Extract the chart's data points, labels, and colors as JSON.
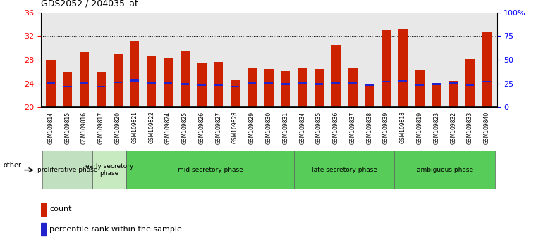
{
  "title": "GDS2052 / 204035_at",
  "samples": [
    "GSM109814",
    "GSM109815",
    "GSM109816",
    "GSM109817",
    "GSM109820",
    "GSM109821",
    "GSM109822",
    "GSM109824",
    "GSM109825",
    "GSM109826",
    "GSM109827",
    "GSM109828",
    "GSM109829",
    "GSM109830",
    "GSM109831",
    "GSM109834",
    "GSM109835",
    "GSM109836",
    "GSM109837",
    "GSM109838",
    "GSM109839",
    "GSM109818",
    "GSM109819",
    "GSM109823",
    "GSM109832",
    "GSM109833",
    "GSM109840"
  ],
  "count_values": [
    28.0,
    25.8,
    29.3,
    25.8,
    29.0,
    31.2,
    28.7,
    28.3,
    29.4,
    27.5,
    27.6,
    24.5,
    26.6,
    26.4,
    26.1,
    26.7,
    26.5,
    30.5,
    26.7,
    23.9,
    33.0,
    33.2,
    26.3,
    24.0,
    24.4,
    28.1,
    32.8
  ],
  "percentile_values": [
    24.0,
    23.5,
    24.0,
    23.5,
    24.2,
    24.5,
    24.1,
    24.1,
    23.9,
    23.7,
    23.8,
    23.5,
    24.0,
    24.0,
    23.9,
    24.0,
    23.9,
    24.0,
    24.0,
    23.8,
    24.3,
    24.4,
    23.8,
    23.9,
    24.0,
    23.7,
    24.3
  ],
  "phases": [
    {
      "name": "proliferative phase",
      "start": 0,
      "end": 3,
      "color": "#c0e0c0"
    },
    {
      "name": "early secretory\nphase",
      "start": 3,
      "end": 5,
      "color": "#c8e8c0"
    },
    {
      "name": "mid secretory phase",
      "start": 5,
      "end": 15,
      "color": "#60cc60"
    },
    {
      "name": "late secretory phase",
      "start": 15,
      "end": 21,
      "color": "#60cc60"
    },
    {
      "name": "ambiguous phase",
      "start": 21,
      "end": 27,
      "color": "#60cc60"
    }
  ],
  "ylim_left": [
    20,
    36
  ],
  "ylim_right": [
    0,
    100
  ],
  "yticks_left": [
    20,
    24,
    28,
    32,
    36
  ],
  "yticks_right": [
    0,
    25,
    50,
    75,
    100
  ],
  "bar_color": "#cc2200",
  "percentile_color": "#2222cc",
  "bar_width": 0.55,
  "ybase": 20,
  "plot_bg": "#e8e8e8",
  "grid_lines": [
    24,
    28,
    32
  ]
}
